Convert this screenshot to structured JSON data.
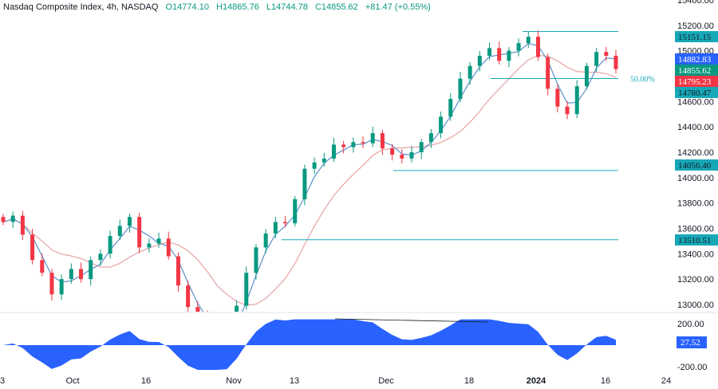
{
  "header": {
    "title": "Nasdaq Composite Index, 4h, NASDAQ",
    "open": "O14774.10",
    "high": "H14865.76",
    "low": "L14744.78",
    "close": "C14855.62",
    "change": "+81.47 (+0.55%)"
  },
  "colors": {
    "up": "#089981",
    "down": "#f23645",
    "fast_ma": "#5b8fc9",
    "slow_ma": "#e8a3a3",
    "level": "#17a8b8",
    "oscillator": "#2962ff"
  },
  "chart_data": {
    "type": "candlestick",
    "y_ticks": [
      "15400.00",
      "15200.00",
      "15000.00",
      "14600.00",
      "14400.00",
      "14200.00",
      "14000.00",
      "13800.00",
      "13600.00",
      "13400.00",
      "13200.00",
      "13000.00"
    ],
    "y_range": [
      12930,
      15400
    ],
    "x_ticks": [
      "3",
      "Oct",
      "16",
      "Nov",
      "13",
      "Dec",
      "18",
      "2024",
      "16",
      "24"
    ],
    "closes": [
      13650,
      13700,
      13550,
      13350,
      13250,
      13080,
      13200,
      13280,
      13200,
      13350,
      13400,
      13540,
      13620,
      13690,
      13450,
      13480,
      13520,
      13380,
      13150,
      12980,
      12900,
      12780,
      12700,
      12820,
      12990,
      13250,
      13450,
      13560,
      13650,
      13640,
      13830,
      14070,
      14120,
      14150,
      14260,
      14240,
      14280,
      14270,
      14350,
      14230,
      14180,
      14150,
      14200,
      14280,
      14350,
      14480,
      14620,
      14780,
      14880,
      14960,
      15020,
      14920,
      15000,
      15060,
      15110,
      14950,
      14700,
      14560,
      14500,
      14720,
      14880,
      14990,
      14960,
      14855
    ],
    "levels": [
      {
        "value": 15151.15,
        "label": "15151.15"
      },
      {
        "value": 14056.4,
        "label": "14056.40"
      },
      {
        "value": 13510.51,
        "label": "13510.51"
      },
      {
        "value": 14780.47,
        "label": "14780.47",
        "note": "50.00%"
      }
    ],
    "price_badges": [
      {
        "label": "14882.83",
        "value": 14882.83,
        "color": "#2962ff"
      },
      {
        "label": "14855.62",
        "value": 14855.62,
        "color": "#089981"
      },
      {
        "label": "14795.23",
        "value": 14795.23,
        "color": "#f23645"
      }
    ],
    "oscillator": {
      "y_ticks": [
        "200.00",
        "-200.00"
      ],
      "current": "27.52"
    }
  }
}
